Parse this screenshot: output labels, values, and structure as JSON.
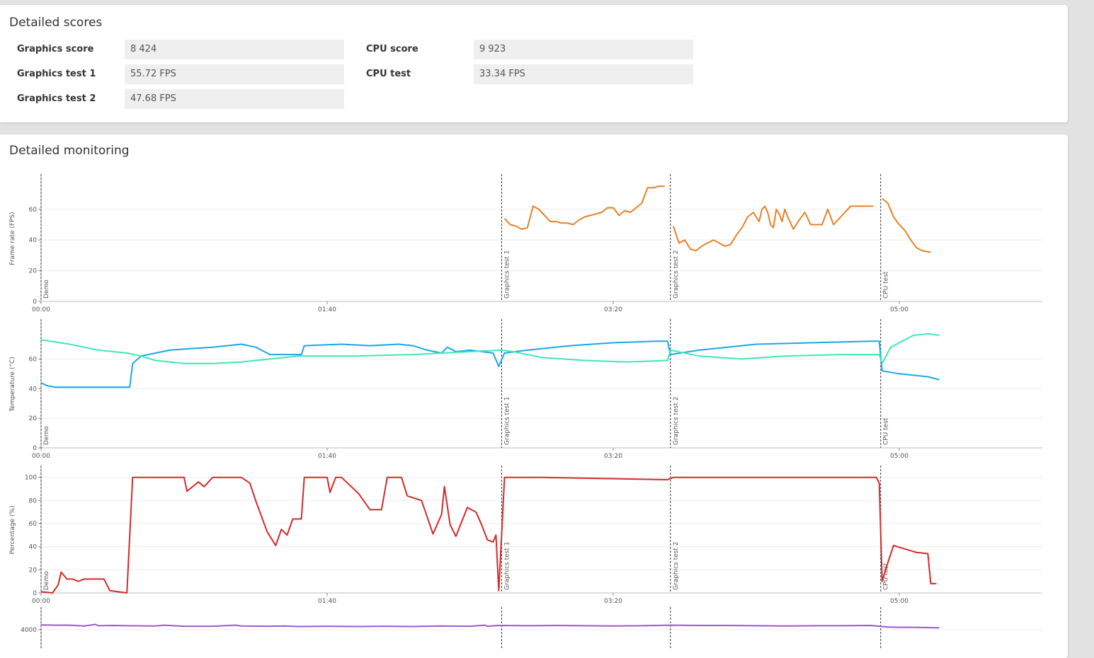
{
  "scores": {
    "title": "Detailed scores",
    "left": [
      {
        "label": "Graphics score",
        "value": "8 424"
      },
      {
        "label": "Graphics test 1",
        "value": "55.72 FPS"
      },
      {
        "label": "Graphics test 2",
        "value": "47.68 FPS"
      }
    ],
    "right": [
      {
        "label": "CPU score",
        "value": "9 923"
      },
      {
        "label": "CPU test",
        "value": "33.34 FPS"
      }
    ]
  },
  "monitoring": {
    "title": "Detailed monitoring"
  },
  "chart_data": [
    {
      "type": "line",
      "ylabel": "Frame rate (FPS)",
      "xlim": [
        0,
        350
      ],
      "ylim": [
        0,
        82
      ],
      "yticks": [
        0,
        20,
        40,
        60
      ],
      "grid": true,
      "xticks": [
        {
          "value": 0,
          "label": "00:00"
        },
        {
          "value": 100,
          "label": "01:40"
        },
        {
          "value": 200,
          "label": "03:20"
        },
        {
          "value": 300,
          "label": "05:00"
        }
      ],
      "markers": [
        {
          "x": 0,
          "label": "Demo"
        },
        {
          "x": 161,
          "label": "Graphics test 1"
        },
        {
          "x": 220,
          "label": "Graphics test 2"
        },
        {
          "x": 293.5,
          "label": "CPU test"
        }
      ],
      "series": [
        {
          "color": "#e8812a",
          "x": [
            162,
            164,
            166,
            168,
            170,
            172,
            174,
            176,
            178,
            180,
            182,
            184,
            186,
            188,
            190,
            192,
            194,
            196,
            198,
            200,
            202,
            204,
            206,
            208,
            210,
            212,
            214,
            216,
            218,
            null,
            221,
            223,
            225,
            227,
            229,
            231,
            233,
            235,
            237,
            239,
            241,
            243,
            245,
            247,
            249,
            251,
            252,
            253,
            254,
            255,
            256,
            257,
            258,
            259,
            260,
            261,
            263,
            265,
            267,
            269,
            271,
            273,
            275,
            277,
            279,
            281,
            283,
            285,
            287,
            289,
            291,
            null,
            294,
            296,
            298,
            300,
            302,
            304,
            306,
            308,
            311
          ],
          "values": [
            54,
            50,
            49,
            47,
            48,
            62,
            60,
            56,
            52,
            52,
            51,
            51,
            50,
            53,
            55,
            56,
            57,
            58,
            61,
            61,
            56,
            59,
            58,
            61,
            64,
            74,
            74,
            75,
            75,
            null,
            49,
            38,
            40,
            34,
            33,
            36,
            38,
            40,
            38,
            36,
            37,
            43,
            48,
            55,
            58,
            52,
            60,
            62,
            58,
            50,
            48,
            60,
            57,
            52,
            60,
            55,
            47,
            53,
            58,
            50,
            50,
            50,
            60,
            50,
            54,
            58,
            62,
            62,
            62,
            62,
            62,
            null,
            67,
            64,
            55,
            50,
            46,
            40,
            35,
            33,
            32
          ]
        }
      ]
    },
    {
      "type": "line",
      "ylabel": "Temperature (°C)",
      "xlim": [
        0,
        350
      ],
      "ylim": [
        0,
        86
      ],
      "yticks": [
        0,
        20,
        40,
        60
      ],
      "grid": true,
      "xticks": [
        {
          "value": 0,
          "label": "00:00"
        },
        {
          "value": 100,
          "label": "01:40"
        },
        {
          "value": 200,
          "label": "03:20"
        },
        {
          "value": 300,
          "label": "05:00"
        }
      ],
      "markers": [
        {
          "x": 0,
          "label": "Demo"
        },
        {
          "x": 161,
          "label": "Graphics test 1"
        },
        {
          "x": 220,
          "label": "Graphics test 2"
        },
        {
          "x": 293.5,
          "label": "CPU test"
        }
      ],
      "series": [
        {
          "color": "#1aa7e6",
          "x": [
            0,
            2,
            5,
            10,
            20,
            31,
            32,
            35,
            40,
            45,
            52,
            60,
            70,
            75,
            80,
            91,
            92,
            105,
            115,
            125,
            130,
            135,
            140,
            142,
            145,
            150,
            158,
            160,
            162,
            170,
            185,
            200,
            215,
            219,
            220,
            230,
            250,
            270,
            290,
            293,
            294,
            300,
            310,
            314
          ],
          "values": [
            44,
            42,
            41,
            41,
            41,
            41,
            57,
            62,
            64,
            66,
            67,
            68,
            70,
            68,
            63,
            63,
            69,
            70,
            69,
            70,
            69,
            66,
            64,
            68,
            65,
            66,
            64,
            55,
            64,
            66,
            69,
            71,
            72,
            72,
            63,
            66,
            70,
            71,
            72,
            72,
            52,
            50,
            48,
            46
          ]
        },
        {
          "color": "#3ee8b8",
          "x": [
            0,
            10,
            20,
            30,
            35,
            40,
            50,
            60,
            70,
            75,
            85,
            90,
            110,
            130,
            140,
            150,
            161,
            165,
            175,
            190,
            205,
            219,
            220,
            230,
            245,
            260,
            280,
            293,
            294,
            297,
            300,
            305,
            310,
            314
          ],
          "values": [
            73,
            70,
            66,
            64,
            62,
            59,
            57,
            57,
            58,
            59,
            61,
            62,
            62,
            63,
            64,
            65,
            66,
            65,
            61,
            59,
            58,
            59,
            66,
            62,
            60,
            62,
            63,
            63,
            57,
            68,
            71,
            76,
            77,
            76
          ]
        }
      ]
    },
    {
      "type": "line",
      "ylabel": "Percentage (%)",
      "xlim": [
        0,
        350
      ],
      "ylim": [
        0,
        109
      ],
      "yticks": [
        0,
        20,
        40,
        60,
        80,
        100
      ],
      "grid": true,
      "xticks": [
        {
          "value": 0,
          "label": "00:00"
        },
        {
          "value": 100,
          "label": "01:40"
        },
        {
          "value": 200,
          "label": "03:20"
        },
        {
          "value": 300,
          "label": "05:00"
        }
      ],
      "markers": [
        {
          "x": 0,
          "label": "Demo"
        },
        {
          "x": 161,
          "label": "Graphics test 1"
        },
        {
          "x": 220,
          "label": "Graphics test 2"
        },
        {
          "x": 293.5,
          "label": "CPU test"
        }
      ],
      "series": [
        {
          "color": "#d12b2b",
          "x": [
            0,
            4,
            6,
            7,
            9,
            11,
            13,
            15,
            20,
            22,
            24,
            30,
            32,
            50,
            51,
            53,
            55,
            57,
            60,
            70,
            73,
            75,
            79,
            82,
            84,
            86,
            88,
            91,
            92,
            100,
            101,
            103,
            105,
            111,
            115,
            119,
            121,
            126,
            128,
            133,
            137,
            140,
            141,
            143,
            145,
            149,
            152,
            154,
            156,
            158,
            159,
            160,
            162,
            175,
            219,
            221,
            292,
            293,
            294,
            296,
            298,
            302,
            306,
            310,
            311,
            313
          ],
          "values": [
            1,
            0,
            7,
            18,
            12,
            12,
            10,
            12,
            12,
            12,
            2,
            0,
            100,
            100,
            88,
            92,
            96,
            92,
            100,
            100,
            95,
            80,
            53,
            41,
            55,
            50,
            64,
            64,
            100,
            100,
            87,
            100,
            100,
            86,
            72,
            72,
            100,
            100,
            84,
            80,
            51,
            68,
            92,
            59,
            49,
            74,
            70,
            59,
            46,
            44,
            50,
            2,
            100,
            100,
            98,
            100,
            100,
            95,
            10,
            26,
            41,
            38,
            35,
            34,
            8,
            8
          ]
        }
      ]
    },
    {
      "type": "line",
      "xlim": [
        0,
        350
      ],
      "ylim": [
        0,
        4800
      ],
      "yticks": [
        4000
      ],
      "grid": true,
      "markers": [
        {
          "x": 0
        },
        {
          "x": 161
        },
        {
          "x": 220
        },
        {
          "x": 293.5
        }
      ],
      "series": [
        {
          "color": "#9b59d0",
          "x": [
            0,
            5,
            10,
            15,
            19,
            20,
            25,
            30,
            40,
            43,
            50,
            60,
            68,
            70,
            80,
            85,
            90,
            100,
            110,
            120,
            130,
            140,
            150,
            155,
            156,
            160,
            170,
            180,
            190,
            200,
            210,
            220,
            230,
            240,
            250,
            260,
            270,
            280,
            290,
            293,
            296,
            300,
            305,
            310,
            314
          ],
          "values": [
            4180,
            4170,
            4170,
            4140,
            4200,
            4150,
            4160,
            4150,
            4140,
            4170,
            4130,
            4130,
            4170,
            4140,
            4130,
            4140,
            4120,
            4130,
            4120,
            4130,
            4120,
            4140,
            4130,
            4170,
            4130,
            4160,
            4150,
            4160,
            4150,
            4140,
            4150,
            4170,
            4160,
            4160,
            4150,
            4140,
            4150,
            4150,
            4160,
            4130,
            4100,
            4090,
            4090,
            4080,
            4070
          ]
        }
      ]
    }
  ]
}
